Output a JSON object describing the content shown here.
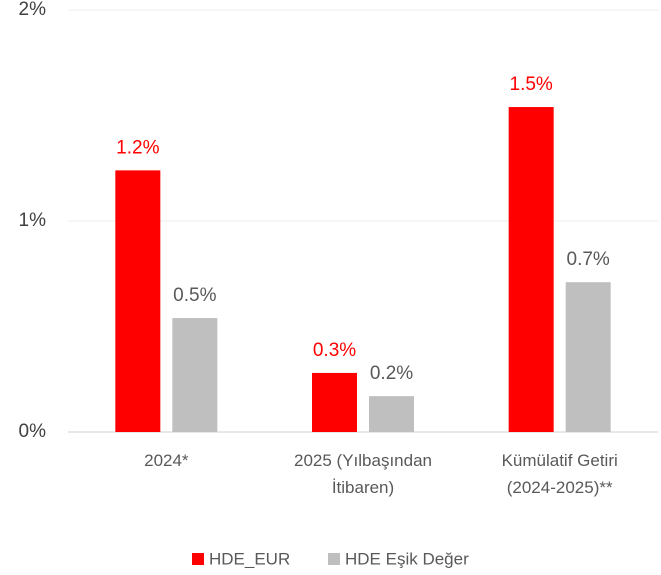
{
  "chart_data": {
    "type": "bar",
    "categories": [
      "2024*",
      "2025 (Yılbaşından\nİtibaren)",
      "Kümülatif Getiri\n(2024-2025)**"
    ],
    "series": [
      {
        "name": "HDE_EUR",
        "color": "#ff0000",
        "values": [
          1.24,
          0.28,
          1.54
        ],
        "value_labels": [
          "1.2%",
          "0.3%",
          "1.5%"
        ]
      },
      {
        "name": "HDE Eşik Değer",
        "color": "#bfbfbf",
        "values": [
          0.54,
          0.17,
          0.71
        ],
        "value_labels": [
          "0.5%",
          "0.2%",
          "0.7%"
        ]
      }
    ],
    "ylim": [
      0,
      2
    ],
    "yticks": [
      {
        "value": 0,
        "label": "0%"
      },
      {
        "value": 1,
        "label": "1%"
      },
      {
        "value": 2,
        "label": "2%"
      }
    ],
    "grid": true,
    "legend": "bottom"
  }
}
